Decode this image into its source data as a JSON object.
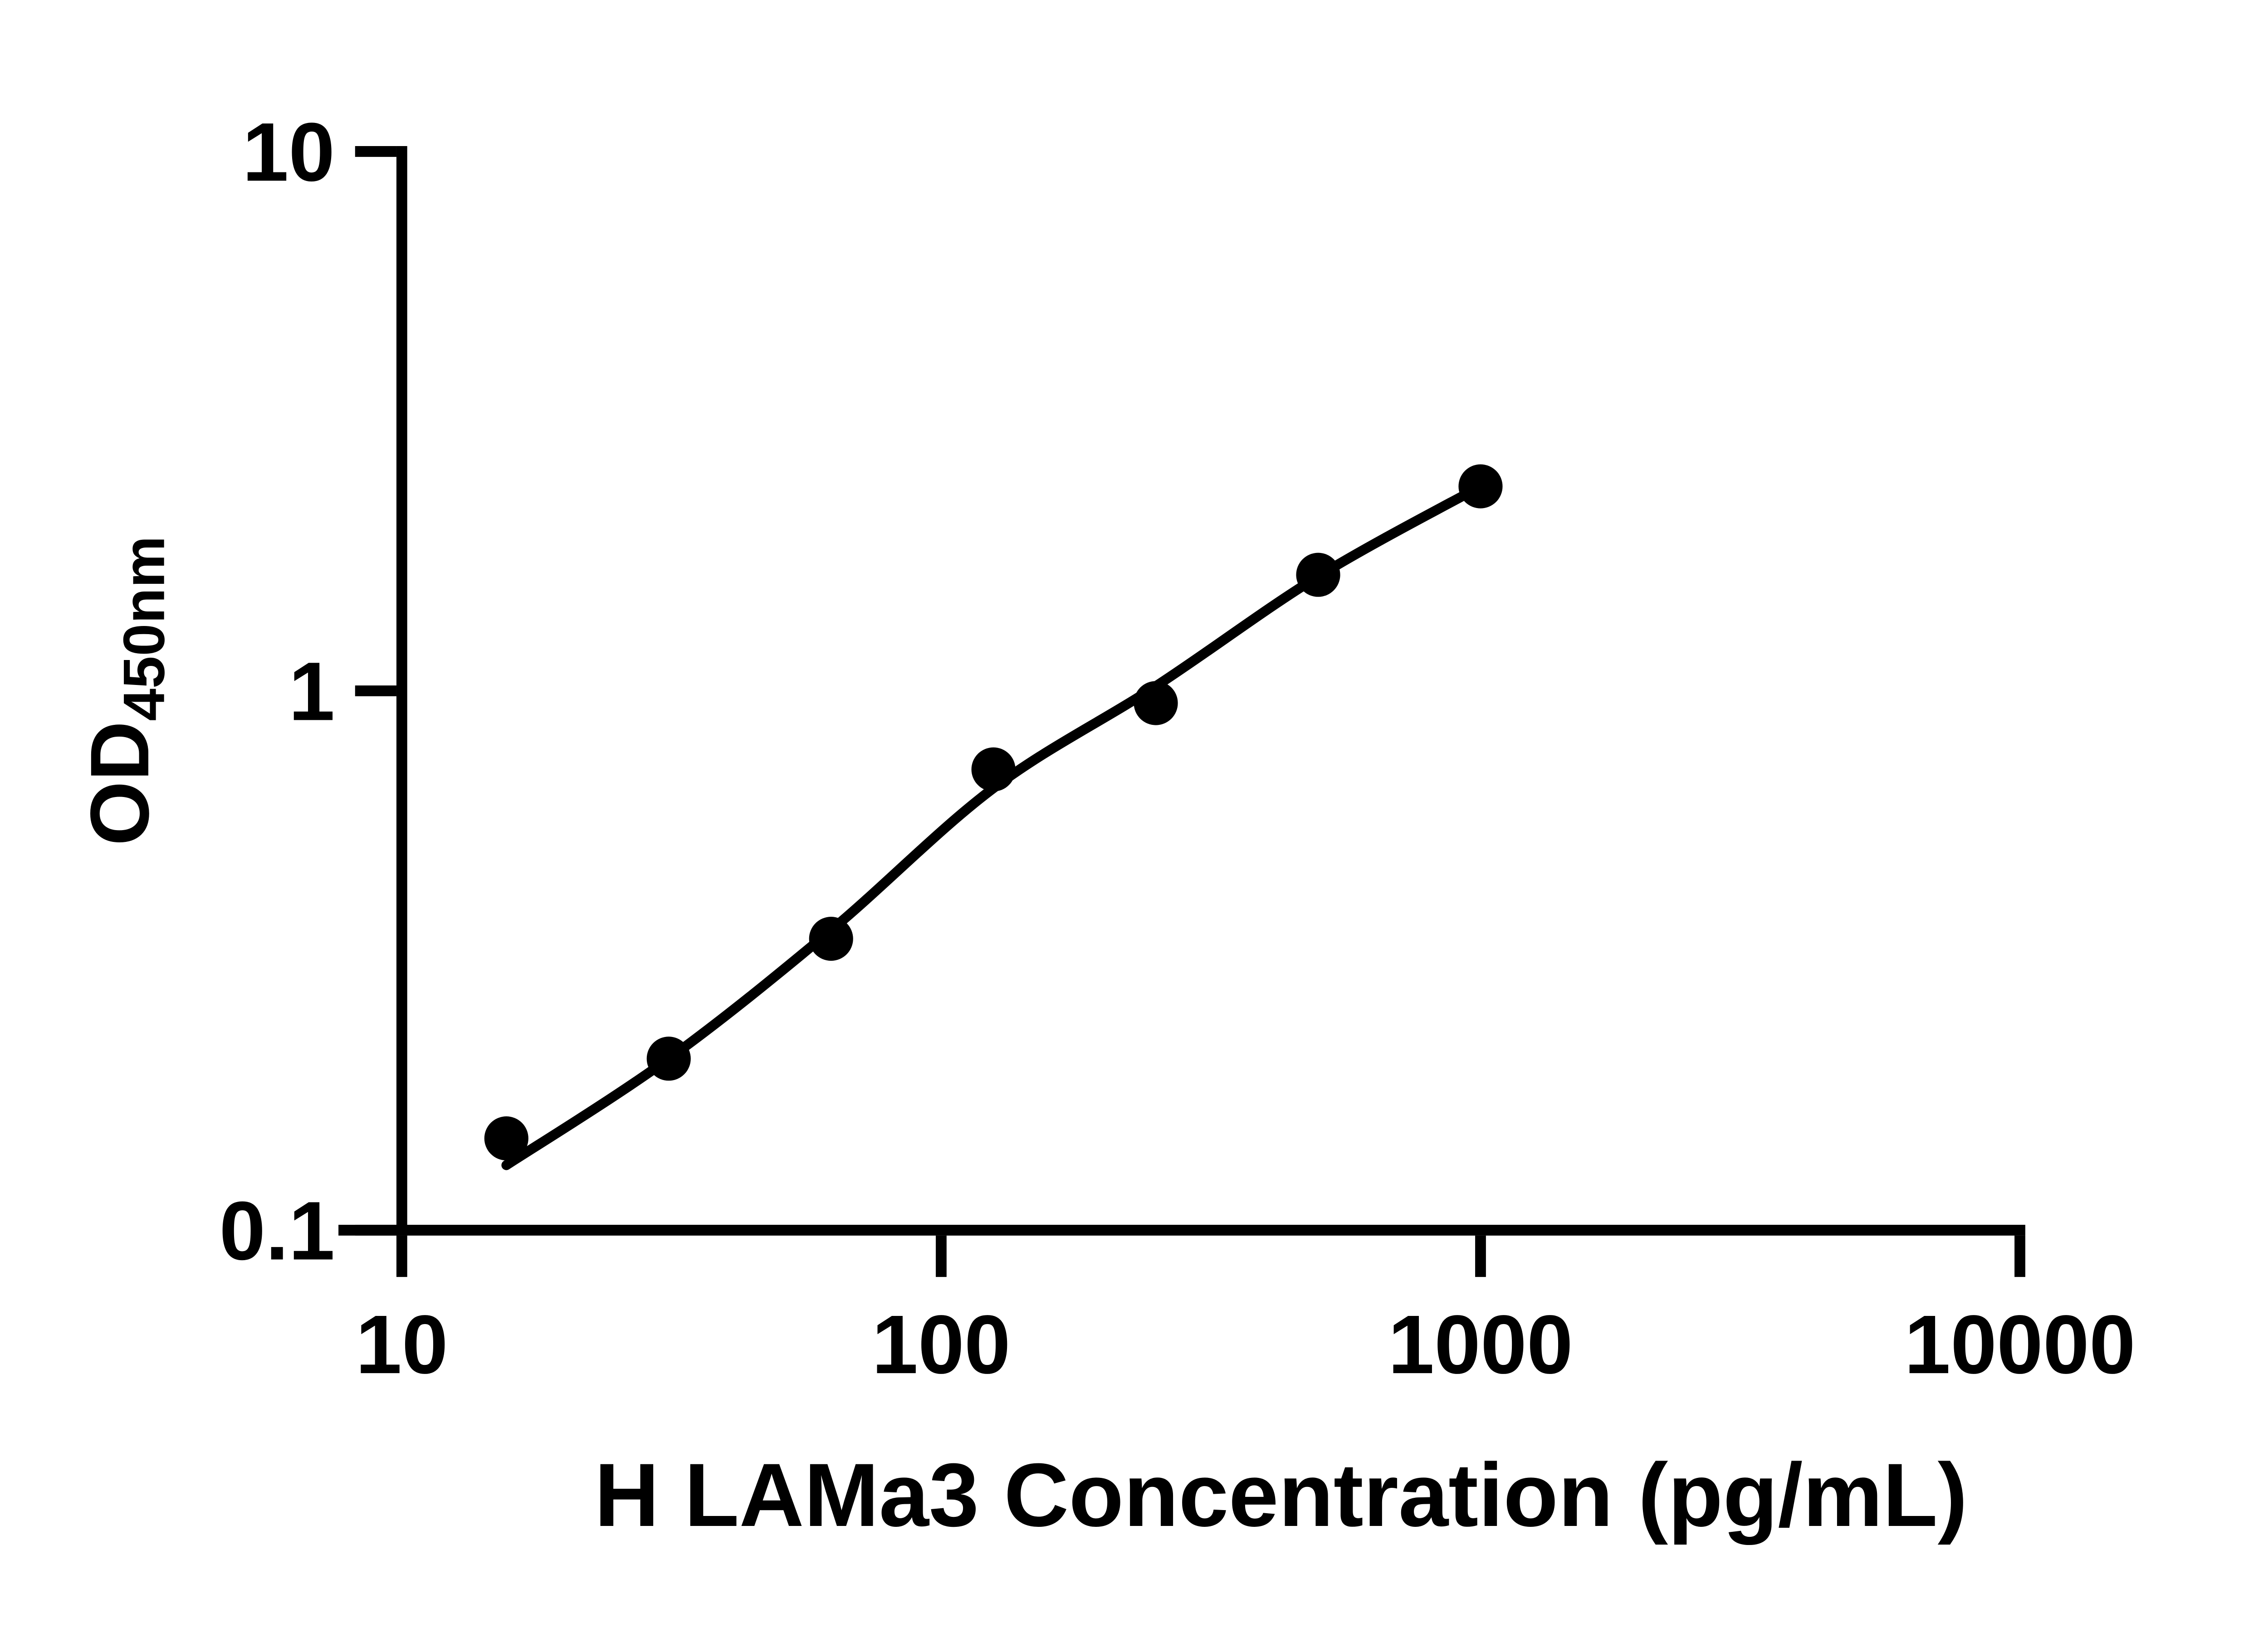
{
  "figure": {
    "background": "#ffffff",
    "ink": "#000000"
  },
  "chart_data": {
    "type": "scatter",
    "title": "",
    "xlabel": "H LAMa3 Concentration (pg/mL)",
    "ylabel": "OD450nm",
    "ylabel_main": "OD",
    "ylabel_sub": "450nm",
    "x_scale": "log",
    "y_scale": "log",
    "xlim": [
      10,
      10000
    ],
    "ylim": [
      0.1,
      10
    ],
    "x_ticks": [
      10,
      100,
      1000,
      10000
    ],
    "x_tick_labels": [
      "10",
      "100",
      "1000",
      "10000"
    ],
    "y_ticks": [
      0.1,
      1,
      10
    ],
    "y_tick_labels": [
      "0.1",
      "1",
      "10"
    ],
    "grid": false,
    "legend": "none",
    "series": [
      {
        "name": "standard-curve-points",
        "marker": "filled-circle",
        "color": "#000000",
        "x": [
          15.625,
          31.25,
          62.5,
          125,
          250,
          500,
          1000
        ],
        "y": [
          0.148,
          0.208,
          0.347,
          0.715,
          0.949,
          1.641,
          2.394
        ]
      }
    ],
    "fit_curve": {
      "name": "4pl-fit-line",
      "color": "#000000",
      "x": [
        15.625,
        31.25,
        62.5,
        125,
        250,
        500,
        1000
      ],
      "y": [
        0.132,
        0.208,
        0.36,
        0.66,
        1.02,
        1.63,
        2.394
      ]
    }
  }
}
